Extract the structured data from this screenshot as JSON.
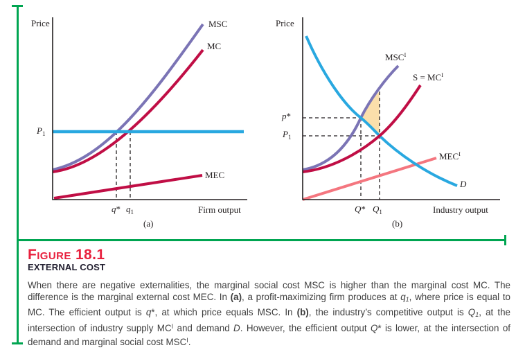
{
  "colors": {
    "purple": "#7b74b5",
    "crimson": "#c00e45",
    "blue": "#29a8e0",
    "salmon": "#f4767f",
    "shade": "#fbdfab",
    "green": "#00a551",
    "figure_red": "#e8213e",
    "axis": "#231f20",
    "heading_dark": "#232031",
    "body_text": "#3e3e3e"
  },
  "chart_a": {
    "price_axis_label": "Price",
    "x_axis_label": "Firm output",
    "panel_label": "(a)",
    "msc_label": "MSC",
    "mc_label": "MC",
    "mec_label": "MEC",
    "p1_label": {
      "base": "P",
      "sub": "1"
    },
    "q_star_label": {
      "base": "q",
      "mark": "*"
    },
    "q1_label": {
      "base": "q",
      "sub": "1"
    }
  },
  "chart_b": {
    "price_axis_label": "Price",
    "x_axis_label": "Industry output",
    "panel_label": "(b)",
    "msc_label": {
      "base": "MSC",
      "sup": "I"
    },
    "s_mc_label": {
      "base": "S = MC",
      "sup": "I"
    },
    "mec_label": {
      "base": "MEC",
      "sup": "I"
    },
    "d_label": "D",
    "p_star_label": {
      "base": "p",
      "mark": "*"
    },
    "p1_label": {
      "base": "P",
      "sub": "1"
    },
    "q_star_label": {
      "base": "Q",
      "mark": "*"
    },
    "q1_label": {
      "base": "Q",
      "sub": "1"
    }
  },
  "caption": {
    "figure_number": "Figure 18.1",
    "subtitle": "EXTERNAL COST",
    "segments": [
      {
        "t": "When there are negative externalities, the marginal social cost MSC is higher than the marginal cost MC. The difference is the marginal external cost MEC. In "
      },
      {
        "t": "(a)",
        "s": "b"
      },
      {
        "t": ", a profit-maximizing firm produces at "
      },
      {
        "t": "q",
        "s": "i"
      },
      {
        "t": "1",
        "s": "isub"
      },
      {
        "t": ", where price is equal to MC. The efficient output is "
      },
      {
        "t": "q",
        "s": "i"
      },
      {
        "t": "*, at which price equals MSC. In "
      },
      {
        "t": "(b)",
        "s": "b"
      },
      {
        "t": ", the industry’s competitive output is "
      },
      {
        "t": "Q",
        "s": "i"
      },
      {
        "t": "1",
        "s": "isub"
      },
      {
        "t": ", at the intersection of industry supply MC"
      },
      {
        "t": "I",
        "s": "sup"
      },
      {
        "t": " and demand "
      },
      {
        "t": "D",
        "s": "i"
      },
      {
        "t": ". However, the efficient output "
      },
      {
        "t": "Q",
        "s": "i"
      },
      {
        "t": "* is lower, at the intersection of demand and marginal social cost MSC"
      },
      {
        "t": "I",
        "s": "sup"
      },
      {
        "t": "."
      }
    ]
  },
  "chart_data": [
    {
      "type": "line",
      "panel": "(a)",
      "title": "External cost at the firm level",
      "xlabel": "Firm output",
      "ylabel": "Price",
      "axes_numeric": false,
      "coordinate_note": "Conceptual diagram, no numeric ticks; points normalized 0-100 on each axis",
      "series": [
        {
          "name": "MSC",
          "color": "#7b74b5",
          "shape": "convex increasing",
          "points": [
            [
              0,
              16
            ],
            [
              15,
              20
            ],
            [
              33,
              37
            ],
            [
              50,
              60
            ],
            [
              65,
              80
            ],
            [
              77,
              96
            ]
          ]
        },
        {
          "name": "MC",
          "color": "#c00e45",
          "shape": "convex increasing",
          "points": [
            [
              0,
              15
            ],
            [
              15,
              18
            ],
            [
              40,
              37
            ],
            [
              55,
              55
            ],
            [
              70,
              73
            ],
            [
              77,
              82
            ]
          ]
        },
        {
          "name": "MEC",
          "color": "#c00e45",
          "shape": "straight from origin",
          "points": [
            [
              1,
              1
            ],
            [
              77,
              13
            ]
          ]
        },
        {
          "name": "P1 price line",
          "color": "#29a8e0",
          "shape": "horizontal",
          "points": [
            [
              0,
              37
            ],
            [
              98,
              37
            ]
          ]
        }
      ],
      "markers": {
        "q_star": {
          "x": 33,
          "label": "q*",
          "meaning": "efficient output, where price equals MSC"
        },
        "q_1": {
          "x": 40,
          "label": "q1",
          "meaning": "profit-maximizing output, where price equals MC"
        },
        "P_1": {
          "y": 37,
          "label": "P1",
          "meaning": "market price line"
        }
      },
      "grid": false,
      "legend": "labels placed at curve ends"
    },
    {
      "type": "line",
      "panel": "(b)",
      "title": "External cost at the industry level",
      "xlabel": "Industry output",
      "ylabel": "Price",
      "axes_numeric": false,
      "coordinate_note": "Conceptual diagram, no numeric ticks; points normalized 0-100 on each axis",
      "series": [
        {
          "name": "D (demand)",
          "color": "#29a8e0",
          "shape": "convex decreasing",
          "points": [
            [
              2,
              90
            ],
            [
              15,
              62
            ],
            [
              30,
              45
            ],
            [
              39,
              35
            ],
            [
              55,
              20
            ],
            [
              79,
              8
            ]
          ]
        },
        {
          "name": "MSC^I",
          "color": "#7b74b5",
          "shape": "convex increasing",
          "points": [
            [
              0,
              16
            ],
            [
              15,
              26
            ],
            [
              30,
              45
            ],
            [
              39,
              59
            ],
            [
              49,
              73
            ]
          ]
        },
        {
          "name": "S = MC^I",
          "color": "#c00e45",
          "shape": "convex increasing",
          "points": [
            [
              0,
              15
            ],
            [
              20,
              23
            ],
            [
              39,
              35
            ],
            [
              50,
              48
            ],
            [
              60,
              63
            ]
          ]
        },
        {
          "name": "MEC^I",
          "color": "#f4767f",
          "shape": "straight from origin",
          "points": [
            [
              0,
              0
            ],
            [
              68,
              23
            ]
          ]
        }
      ],
      "markers": {
        "Q_star": {
          "x": 30,
          "label": "Q*",
          "meaning": "efficient output, at intersection of MSC^I and D"
        },
        "Q_1": {
          "x": 39,
          "label": "Q1",
          "meaning": "competitive output, at intersection of S = MC^I and D"
        },
        "p_star": {
          "y": 45,
          "label": "p*"
        },
        "P_1": {
          "y": 35,
          "label": "P1"
        }
      },
      "shaded_region": {
        "color": "#fbdfab",
        "meaning": "welfare loss between MSC^I and D from Q* to Q1",
        "vertices_normalized": [
          [
            30,
            45
          ],
          [
            39,
            59
          ],
          [
            39,
            35
          ]
        ]
      },
      "grid": false,
      "legend": "labels placed at curve ends"
    }
  ]
}
